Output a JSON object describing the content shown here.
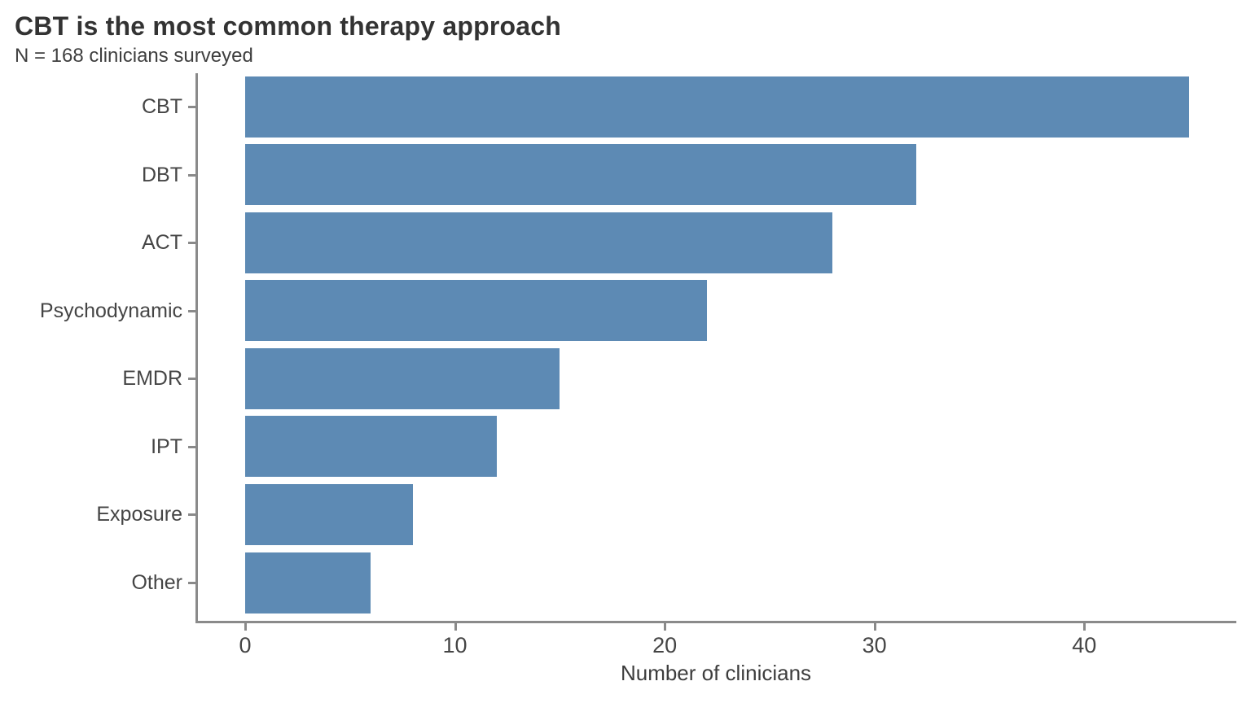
{
  "page": {
    "background": "#ffffff"
  },
  "chart_data": {
    "type": "bar",
    "orientation": "horizontal",
    "title": "CBT is the most common therapy approach",
    "subtitle": "N = 168 clinicians surveyed",
    "xlabel": "Number of clinicians",
    "ylabel": "",
    "categories": [
      "CBT",
      "DBT",
      "ACT",
      "Psychodynamic",
      "EMDR",
      "IPT",
      "Exposure",
      "Other"
    ],
    "values": [
      45,
      32,
      28,
      22,
      15,
      12,
      8,
      6
    ],
    "x_ticks": [
      0,
      10,
      20,
      30,
      40
    ],
    "xlim": [
      -2.25,
      47.25
    ],
    "grid": false,
    "legend": false,
    "colors": {
      "bar": "#5d8ab4",
      "axis_line": "#8a8a8a",
      "axis_text": "#454545",
      "title_text": "#333333",
      "subtitle_text": "#3f3f3f"
    }
  }
}
